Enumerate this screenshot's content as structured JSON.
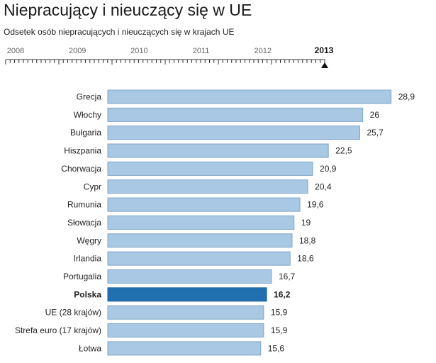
{
  "page": {
    "title": "Niepracujący i nieuczący się w UE",
    "subtitle": "Odsetek osób niepracujących i nieuczących się w krajach UE"
  },
  "timeline": {
    "years": [
      "2008",
      "2009",
      "2010",
      "2011",
      "2012",
      "2013"
    ],
    "selected": "2013"
  },
  "colors": {
    "bar": "#a8c8e3",
    "bar_stroke": "#7ea6c9",
    "highlight": "#2070b0",
    "highlight_stroke": "#1a5f96"
  },
  "chart_data": {
    "type": "bar",
    "orientation": "horizontal",
    "title": "",
    "xlabel": "",
    "ylabel": "",
    "xlim": [
      0,
      29.5
    ],
    "grid": false,
    "highlight_category": "Polska",
    "categories": [
      "Grecja",
      "Włochy",
      "Bułgaria",
      "Hiszpania",
      "Chorwacja",
      "Cypr",
      "Rumunia",
      "Słowacja",
      "Węgry",
      "Irlandia",
      "Portugalia",
      "Polska",
      "UE (28 krajów)",
      "Strefa euro (17 krajów)",
      "Łotwa"
    ],
    "values": [
      28.9,
      26,
      25.7,
      22.5,
      20.9,
      20.4,
      19.6,
      19,
      18.8,
      18.6,
      16.7,
      16.2,
      15.9,
      15.9,
      15.6
    ],
    "value_labels": [
      "28,9",
      "26",
      "25,7",
      "22,5",
      "20,9",
      "20,4",
      "19,6",
      "19",
      "18,8",
      "18,6",
      "16,7",
      "16,2",
      "15,9",
      "15,9",
      "15,6"
    ]
  }
}
